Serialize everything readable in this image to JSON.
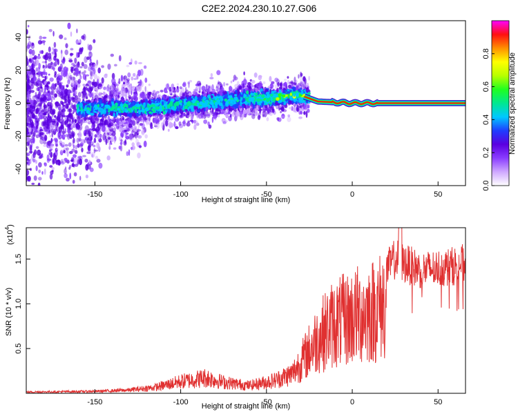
{
  "figure_title": "C2E2.2024.230.10.27.G06",
  "colors": {
    "snr_line": "#e03030",
    "spectrum_base": "#6a00ff",
    "frame": "#000000"
  },
  "colorbar_stops": [
    "#ffffff",
    "#cfa8ff",
    "#8a3dff",
    "#5a00e0",
    "#1f3dff",
    "#00c8ff",
    "#00e890",
    "#20ff20",
    "#b8ff00",
    "#ffff00",
    "#ff9000",
    "#ff1010",
    "#ff00ff"
  ],
  "chart_data": [
    {
      "type": "heatmap",
      "title": "C2E2.2024.230.10.27.G06",
      "xlabel": "Height of straight line (km)",
      "ylabel": "Frequency (Hz)",
      "xlim": [
        -190,
        66
      ],
      "ylim": [
        -50,
        50
      ],
      "xticks": [
        -150,
        -100,
        -50,
        0,
        50
      ],
      "yticks": [
        -40,
        -20,
        0,
        20,
        40
      ],
      "colorbar": {
        "label": "Normalized spectral amplitude",
        "range": [
          0,
          1
        ],
        "ticks": [
          "0.0",
          "0.2",
          "0.4",
          "0.6",
          "0.8"
        ]
      },
      "description_tone": "noisy spread below -30 km; narrow red carrier near 0 Hz above -25 km",
      "ridge": [
        {
          "x": -150,
          "f": -3
        },
        {
          "x": -120,
          "f": -3
        },
        {
          "x": -90,
          "f": 0
        },
        {
          "x": -60,
          "f": 3
        },
        {
          "x": -45,
          "f": 3
        },
        {
          "x": -35,
          "f": 5
        },
        {
          "x": -28,
          "f": 4
        },
        {
          "x": -20,
          "f": 1
        },
        {
          "x": 0,
          "f": 0
        },
        {
          "x": 20,
          "f": 0
        },
        {
          "x": 66,
          "f": 0
        }
      ]
    },
    {
      "type": "line",
      "xlabel": "Height of straight line (km)",
      "ylabel": "SNR (10 * v/v)",
      "yscale_label": "(x10",
      "yscale_exp": "4",
      "xlim": [
        -190,
        66
      ],
      "ylim": [
        0,
        1.85
      ],
      "xticks": [
        -150,
        -100,
        -50,
        0,
        50
      ],
      "yticks": [
        "0.5",
        "1.0",
        "1.5"
      ],
      "ytick_values": [
        0.5,
        1.0,
        1.5
      ],
      "series": [
        {
          "name": "SNR",
          "envelope": [
            {
              "x": -190,
              "y": 0.02
            },
            {
              "x": -150,
              "y": 0.03
            },
            {
              "x": -130,
              "y": 0.05
            },
            {
              "x": -115,
              "y": 0.09
            },
            {
              "x": -100,
              "y": 0.18
            },
            {
              "x": -85,
              "y": 0.24
            },
            {
              "x": -75,
              "y": 0.17
            },
            {
              "x": -60,
              "y": 0.12
            },
            {
              "x": -45,
              "y": 0.2
            },
            {
              "x": -35,
              "y": 0.3
            },
            {
              "x": -28,
              "y": 0.55
            },
            {
              "x": -20,
              "y": 0.85
            },
            {
              "x": -12,
              "y": 1.05
            },
            {
              "x": -5,
              "y": 1.12
            },
            {
              "x": 5,
              "y": 1.22
            },
            {
              "x": 15,
              "y": 1.3
            },
            {
              "x": 25,
              "y": 1.55
            },
            {
              "x": 30,
              "y": 1.5
            },
            {
              "x": 40,
              "y": 1.42
            },
            {
              "x": 55,
              "y": 1.45
            },
            {
              "x": 66,
              "y": 1.5
            }
          ]
        }
      ]
    }
  ]
}
